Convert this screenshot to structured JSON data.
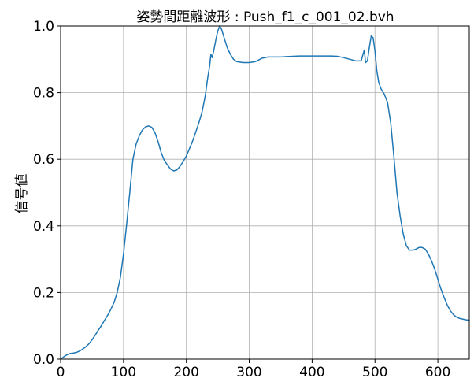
{
  "chart_data": {
    "type": "line",
    "title": "姿勢間距離波形 : Push_f1_c_001_02.bvh",
    "xlabel": "",
    "ylabel": "信号値",
    "xlim": [
      0,
      650
    ],
    "ylim": [
      0,
      1.0
    ],
    "x_ticks": [
      0,
      100,
      200,
      300,
      400,
      500,
      600
    ],
    "y_ticks": [
      0.0,
      0.2,
      0.4,
      0.6,
      0.8,
      1.0
    ],
    "x_tick_labels": [
      "0",
      "100",
      "200",
      "300",
      "400",
      "500",
      "600"
    ],
    "y_tick_labels": [
      "0.0",
      "0.2",
      "0.4",
      "0.6",
      "0.8",
      "1.0"
    ],
    "grid": true,
    "line_color": "#1f77b4",
    "series": [
      {
        "x": [
          0,
          5,
          10,
          15,
          20,
          25,
          30,
          35,
          40,
          45,
          50,
          55,
          60,
          65,
          70,
          75,
          80,
          85,
          90,
          95,
          100,
          105,
          110,
          115,
          120,
          125,
          130,
          135,
          140,
          145,
          150,
          155,
          160,
          165,
          170,
          175,
          180,
          185,
          190,
          195,
          200,
          205,
          210,
          215,
          220,
          225,
          230,
          234,
          237,
          239,
          241,
          244,
          247,
          250,
          253,
          256,
          260,
          265,
          270,
          275,
          280,
          290,
          300,
          310,
          320,
          330,
          340,
          350,
          360,
          370,
          380,
          390,
          400,
          410,
          420,
          430,
          440,
          450,
          460,
          470,
          478,
          481,
          483,
          485,
          488,
          491,
          494,
          497,
          500,
          503,
          506,
          510,
          515,
          520,
          525,
          530,
          535,
          540,
          545,
          550,
          555,
          560,
          565,
          570,
          575,
          580,
          585,
          590,
          595,
          600,
          605,
          610,
          615,
          620,
          625,
          630,
          635,
          640,
          645,
          650
        ],
        "y": [
          0.0,
          0.007,
          0.013,
          0.017,
          0.018,
          0.02,
          0.024,
          0.03,
          0.037,
          0.046,
          0.058,
          0.072,
          0.087,
          0.101,
          0.117,
          0.132,
          0.15,
          0.17,
          0.2,
          0.245,
          0.315,
          0.405,
          0.5,
          0.6,
          0.645,
          0.67,
          0.688,
          0.697,
          0.7,
          0.696,
          0.68,
          0.653,
          0.62,
          0.596,
          0.583,
          0.57,
          0.565,
          0.568,
          0.579,
          0.593,
          0.61,
          0.632,
          0.655,
          0.682,
          0.71,
          0.742,
          0.79,
          0.845,
          0.88,
          0.915,
          0.905,
          0.93,
          0.96,
          0.985,
          1.0,
          0.99,
          0.965,
          0.935,
          0.915,
          0.9,
          0.893,
          0.89,
          0.89,
          0.893,
          0.903,
          0.907,
          0.907,
          0.907,
          0.908,
          0.909,
          0.91,
          0.91,
          0.91,
          0.91,
          0.91,
          0.91,
          0.909,
          0.905,
          0.9,
          0.895,
          0.895,
          0.915,
          0.928,
          0.89,
          0.895,
          0.935,
          0.97,
          0.965,
          0.925,
          0.865,
          0.83,
          0.81,
          0.795,
          0.77,
          0.71,
          0.61,
          0.5,
          0.43,
          0.375,
          0.34,
          0.327,
          0.327,
          0.33,
          0.335,
          0.335,
          0.33,
          0.315,
          0.295,
          0.27,
          0.24,
          0.21,
          0.185,
          0.162,
          0.145,
          0.133,
          0.126,
          0.122,
          0.12,
          0.118,
          0.117
        ]
      }
    ]
  }
}
